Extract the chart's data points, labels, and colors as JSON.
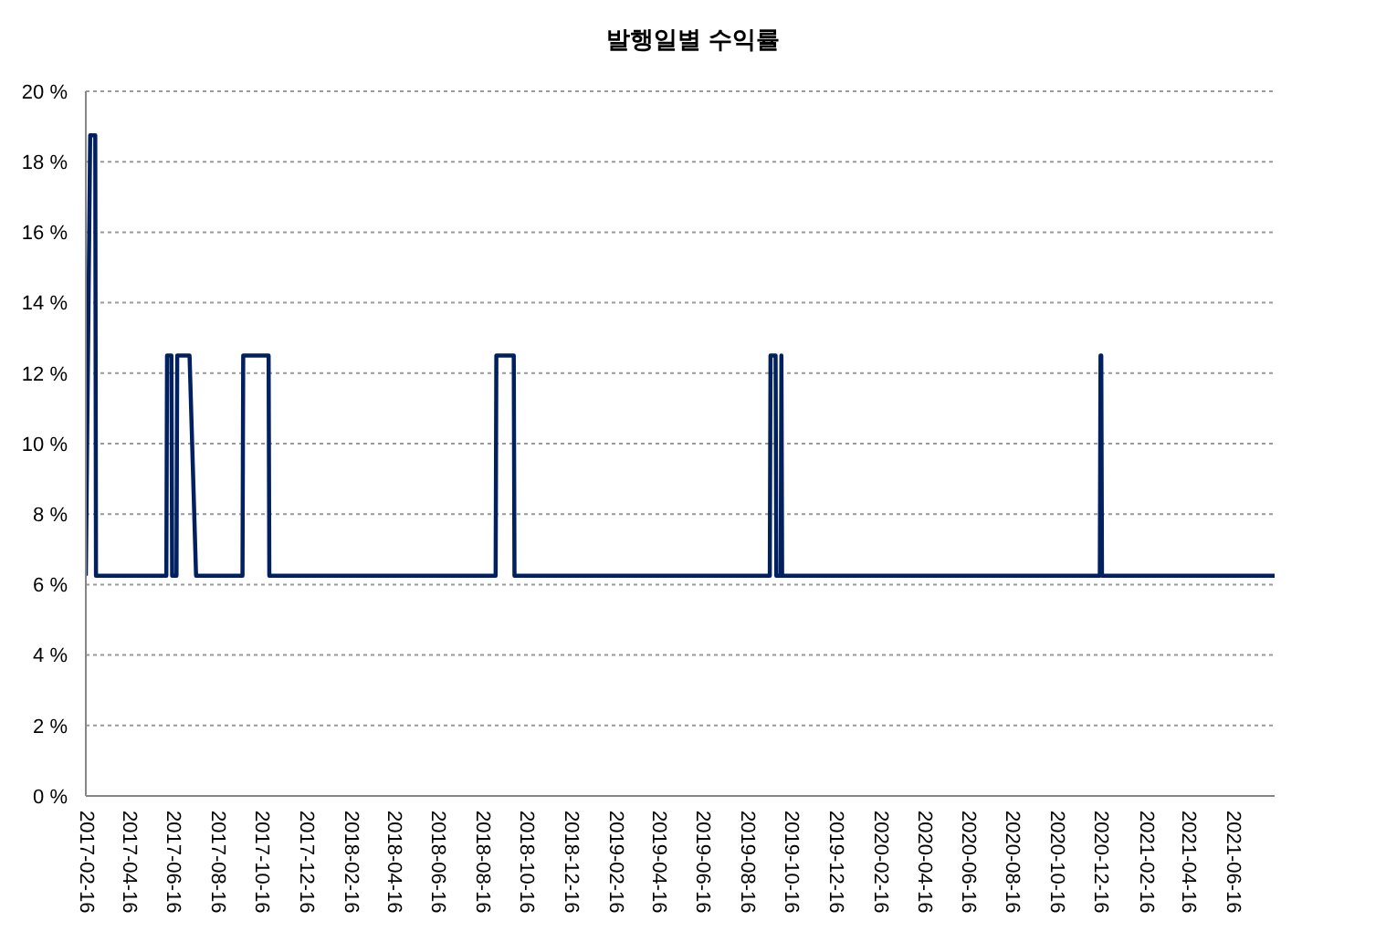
{
  "chart_data": {
    "type": "line",
    "title": "발행일별 수익률",
    "x": [
      "2017-02-16",
      "2017-02-22",
      "2017-03-01",
      "2017-03-02",
      "2017-06-07",
      "2017-06-08",
      "2017-06-14",
      "2017-06-15",
      "2017-06-21",
      "2017-06-22",
      "2017-07-09",
      "2017-07-18",
      "2017-09-20",
      "2017-09-21",
      "2017-10-26",
      "2017-10-27",
      "2018-09-04",
      "2018-09-05",
      "2018-09-29",
      "2018-09-30",
      "2019-09-17",
      "2019-09-18",
      "2019-09-25",
      "2019-09-26",
      "2019-10-02",
      "2019-10-03",
      "2019-10-04",
      "2020-12-15",
      "2020-12-16",
      "2020-12-17",
      "2020-12-18",
      "2021-08-13"
    ],
    "values": [
      6.25,
      18.75,
      18.75,
      6.25,
      6.25,
      12.5,
      12.5,
      6.25,
      6.25,
      12.5,
      12.5,
      6.25,
      6.25,
      12.5,
      12.5,
      6.25,
      6.25,
      12.5,
      12.5,
      6.25,
      6.25,
      12.5,
      12.5,
      6.25,
      6.25,
      12.5,
      6.25,
      6.25,
      12.5,
      12.5,
      6.25,
      6.25
    ],
    "color": "#002060",
    "xlim": [
      "2017-02-16",
      "2021-08-13"
    ],
    "xticks": [
      "2017-02-16",
      "2017-04-16",
      "2017-06-16",
      "2017-08-16",
      "2017-10-16",
      "2017-12-16",
      "2018-02-16",
      "2018-04-16",
      "2018-06-16",
      "2018-08-16",
      "2018-10-16",
      "2018-12-16",
      "2019-02-16",
      "2019-04-16",
      "2019-06-16",
      "2019-08-16",
      "2019-10-16",
      "2019-12-16",
      "2020-02-16",
      "2020-04-16",
      "2020-06-16",
      "2020-08-16",
      "2020-10-16",
      "2020-12-16",
      "2021-02-16",
      "2021-04-16",
      "2021-06-16"
    ],
    "ylim": [
      0,
      20
    ],
    "yticks": [
      {
        "value": 0,
        "label": "0 %"
      },
      {
        "value": 2,
        "label": "2 %"
      },
      {
        "value": 4,
        "label": "4 %"
      },
      {
        "value": 6,
        "label": "6 %"
      },
      {
        "value": 8,
        "label": "8 %"
      },
      {
        "value": 10,
        "label": "10 %"
      },
      {
        "value": 12,
        "label": "12 %"
      },
      {
        "value": 14,
        "label": "14 %"
      },
      {
        "value": 16,
        "label": "16 %"
      },
      {
        "value": 18,
        "label": "18 %"
      },
      {
        "value": 20,
        "label": "20 %"
      }
    ],
    "grid": "y"
  }
}
